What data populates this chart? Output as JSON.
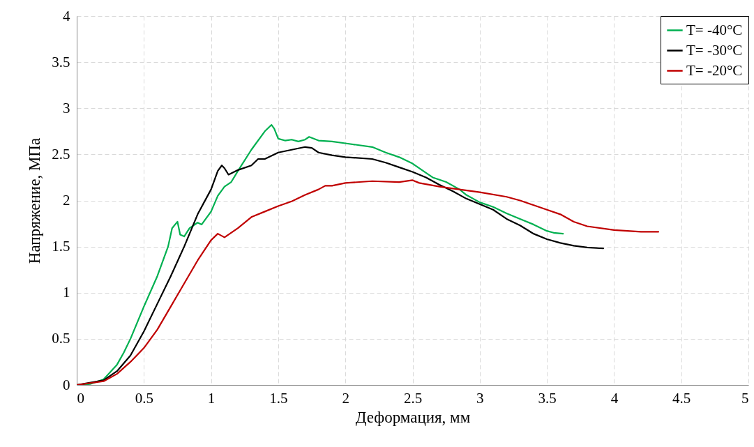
{
  "chart_data": {
    "type": "line",
    "xlabel": "Деформация, мм",
    "ylabel": "Напряжение, МПа",
    "xlim": [
      0,
      5
    ],
    "ylim": [
      0,
      4
    ],
    "xticks": [
      0,
      0.5,
      1,
      1.5,
      2,
      2.5,
      3,
      3.5,
      4,
      4.5,
      5
    ],
    "yticks": [
      0,
      0.5,
      1,
      1.5,
      2,
      2.5,
      3,
      3.5,
      4
    ],
    "grid": true,
    "legend": "top right",
    "line_style": "solid",
    "series": [
      {
        "name": "T= -40°C",
        "color": "#00b050",
        "x": [
          0,
          0.1,
          0.2,
          0.3,
          0.35,
          0.4,
          0.5,
          0.6,
          0.68,
          0.71,
          0.75,
          0.77,
          0.8,
          0.84,
          0.9,
          0.93,
          1.0,
          1.05,
          1.1,
          1.15,
          1.2,
          1.3,
          1.4,
          1.45,
          1.47,
          1.5,
          1.55,
          1.6,
          1.65,
          1.7,
          1.73,
          1.8,
          1.9,
          2.0,
          2.2,
          2.3,
          2.4,
          2.5,
          2.6,
          2.65,
          2.75,
          2.85,
          2.9,
          3.0,
          3.1,
          3.2,
          3.3,
          3.4,
          3.5,
          3.55,
          3.62
        ],
        "values": [
          0,
          0.01,
          0.06,
          0.22,
          0.35,
          0.5,
          0.85,
          1.18,
          1.5,
          1.7,
          1.77,
          1.63,
          1.61,
          1.7,
          1.76,
          1.74,
          1.88,
          2.05,
          2.15,
          2.2,
          2.32,
          2.55,
          2.75,
          2.82,
          2.78,
          2.67,
          2.65,
          2.66,
          2.64,
          2.66,
          2.69,
          2.65,
          2.64,
          2.62,
          2.58,
          2.52,
          2.47,
          2.4,
          2.3,
          2.25,
          2.2,
          2.12,
          2.06,
          1.98,
          1.93,
          1.86,
          1.8,
          1.74,
          1.67,
          1.65,
          1.64
        ]
      },
      {
        "name": "T= -30°C",
        "color": "#000000",
        "x": [
          0,
          0.2,
          0.3,
          0.4,
          0.5,
          0.6,
          0.7,
          0.8,
          0.9,
          1.0,
          1.05,
          1.08,
          1.1,
          1.13,
          1.2,
          1.3,
          1.35,
          1.4,
          1.5,
          1.6,
          1.7,
          1.75,
          1.8,
          1.9,
          2.0,
          2.2,
          2.3,
          2.4,
          2.5,
          2.6,
          2.7,
          2.8,
          2.9,
          3.0,
          3.1,
          3.2,
          3.3,
          3.4,
          3.5,
          3.6,
          3.7,
          3.8,
          3.92
        ],
        "values": [
          0,
          0.05,
          0.15,
          0.32,
          0.58,
          0.88,
          1.18,
          1.5,
          1.85,
          2.12,
          2.32,
          2.38,
          2.35,
          2.28,
          2.33,
          2.38,
          2.45,
          2.45,
          2.52,
          2.55,
          2.58,
          2.57,
          2.52,
          2.49,
          2.47,
          2.45,
          2.41,
          2.36,
          2.31,
          2.25,
          2.17,
          2.1,
          2.02,
          1.96,
          1.9,
          1.8,
          1.73,
          1.64,
          1.58,
          1.54,
          1.51,
          1.49,
          1.48
        ]
      },
      {
        "name": "T= -20°C",
        "color": "#c00000",
        "x": [
          0,
          0.2,
          0.3,
          0.4,
          0.5,
          0.6,
          0.7,
          0.8,
          0.9,
          1.0,
          1.05,
          1.1,
          1.2,
          1.3,
          1.4,
          1.5,
          1.6,
          1.7,
          1.8,
          1.85,
          1.9,
          2.0,
          2.2,
          2.4,
          2.5,
          2.55,
          2.7,
          2.8,
          3.0,
          3.2,
          3.3,
          3.5,
          3.6,
          3.7,
          3.8,
          4.0,
          4.2,
          4.33
        ],
        "values": [
          0,
          0.04,
          0.12,
          0.25,
          0.4,
          0.6,
          0.85,
          1.1,
          1.35,
          1.57,
          1.64,
          1.6,
          1.7,
          1.82,
          1.88,
          1.94,
          1.99,
          2.06,
          2.12,
          2.16,
          2.16,
          2.19,
          2.21,
          2.2,
          2.22,
          2.19,
          2.15,
          2.13,
          2.09,
          2.04,
          2.0,
          1.9,
          1.85,
          1.77,
          1.72,
          1.68,
          1.66,
          1.66
        ]
      }
    ]
  }
}
